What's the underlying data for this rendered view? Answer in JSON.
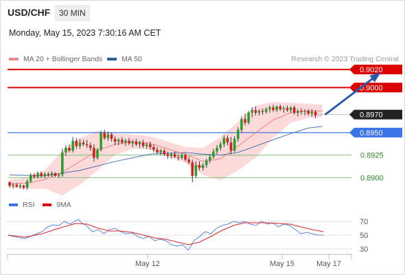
{
  "header": {
    "pair": "USD/CHF",
    "timeframe": "30 MIN",
    "datetime": "Monday, May 15, 2023 7:30:16 AM CET"
  },
  "legend": [
    {
      "label": "MA 20 + Bollinger Bands",
      "color": "#f08a8a"
    },
    {
      "label": "MA 50",
      "color": "#2e5a9c"
    }
  ],
  "credit": "Research © 2023 Trading Central",
  "colors": {
    "up": "#2a9d2a",
    "down": "#d62020",
    "resistance": "#dd0000",
    "support_blue": "#3b73e8",
    "support_green": "#5cb85c",
    "band": "#fcd6d6",
    "ma20": "#f08080",
    "ma50": "#4a6fb5",
    "arrow": "#2a5aa8",
    "current": "#222222"
  },
  "chart_data": [
    {
      "type": "candlestick",
      "y_range": [
        0.8882,
        0.903
      ],
      "x_ticks": [
        "May 12",
        "May 15",
        "May 17"
      ],
      "levels": [
        {
          "value": 0.902,
          "label": "0.9020",
          "kind": "resistance"
        },
        {
          "value": 0.9,
          "label": "0.9000",
          "kind": "resistance"
        },
        {
          "value": 0.897,
          "label": "0.8970",
          "kind": "current"
        },
        {
          "value": 0.895,
          "label": "0.8950",
          "kind": "support_blue"
        },
        {
          "value": 0.8925,
          "label": "0.8925",
          "kind": "support_green"
        },
        {
          "value": 0.89,
          "label": "0.8900",
          "kind": "support_green"
        }
      ],
      "candles": [
        [
          0.8895,
          0.8896,
          0.8889,
          0.8891
        ],
        [
          0.8891,
          0.8894,
          0.8888,
          0.8892
        ],
        [
          0.8892,
          0.8894,
          0.8889,
          0.889
        ],
        [
          0.889,
          0.8893,
          0.8888,
          0.8891
        ],
        [
          0.8891,
          0.8892,
          0.8887,
          0.8889
        ],
        [
          0.8889,
          0.8898,
          0.8887,
          0.8896
        ],
        [
          0.8896,
          0.8905,
          0.8894,
          0.8903
        ],
        [
          0.8903,
          0.8905,
          0.8899,
          0.8901
        ],
        [
          0.8901,
          0.8907,
          0.8899,
          0.8905
        ],
        [
          0.8905,
          0.8907,
          0.89,
          0.8902
        ],
        [
          0.8902,
          0.8906,
          0.89,
          0.8904
        ],
        [
          0.8904,
          0.8906,
          0.8901,
          0.8903
        ],
        [
          0.8903,
          0.8907,
          0.8901,
          0.8905
        ],
        [
          0.8905,
          0.8906,
          0.8901,
          0.8902
        ],
        [
          0.8902,
          0.8905,
          0.89,
          0.8903
        ],
        [
          0.8903,
          0.8932,
          0.8901,
          0.8928
        ],
        [
          0.8928,
          0.8936,
          0.8924,
          0.8933
        ],
        [
          0.8933,
          0.8937,
          0.8928,
          0.893
        ],
        [
          0.893,
          0.8945,
          0.8928,
          0.8941
        ],
        [
          0.8941,
          0.8944,
          0.8932,
          0.8935
        ],
        [
          0.8935,
          0.8943,
          0.8932,
          0.8939
        ],
        [
          0.8939,
          0.8942,
          0.8935,
          0.8937
        ],
        [
          0.8937,
          0.8942,
          0.8933,
          0.8936
        ],
        [
          0.8936,
          0.8939,
          0.893,
          0.8933
        ],
        [
          0.8933,
          0.8937,
          0.8918,
          0.8922
        ],
        [
          0.8922,
          0.8933,
          0.892,
          0.8931
        ],
        [
          0.8931,
          0.8952,
          0.8929,
          0.895
        ],
        [
          0.895,
          0.8953,
          0.8942,
          0.8944
        ],
        [
          0.8944,
          0.8951,
          0.8941,
          0.8948
        ],
        [
          0.8948,
          0.895,
          0.894,
          0.8943
        ],
        [
          0.8943,
          0.8946,
          0.8936,
          0.894
        ],
        [
          0.894,
          0.8944,
          0.8936,
          0.8942
        ],
        [
          0.8942,
          0.8945,
          0.8937,
          0.8939
        ],
        [
          0.8939,
          0.8943,
          0.8935,
          0.8941
        ],
        [
          0.8941,
          0.8944,
          0.8936,
          0.8938
        ],
        [
          0.8938,
          0.8942,
          0.8934,
          0.894
        ],
        [
          0.894,
          0.8943,
          0.8935,
          0.8937
        ],
        [
          0.8937,
          0.8941,
          0.8933,
          0.8939
        ],
        [
          0.8939,
          0.8942,
          0.8933,
          0.8935
        ],
        [
          0.8935,
          0.8939,
          0.8932,
          0.8937
        ],
        [
          0.8937,
          0.894,
          0.8931,
          0.8934
        ],
        [
          0.8934,
          0.8937,
          0.8928,
          0.8931
        ],
        [
          0.8931,
          0.8934,
          0.8926,
          0.8928
        ],
        [
          0.8928,
          0.8932,
          0.8925,
          0.893
        ],
        [
          0.893,
          0.8932,
          0.8924,
          0.8926
        ],
        [
          0.8926,
          0.8929,
          0.8921,
          0.8924
        ],
        [
          0.8924,
          0.8928,
          0.8921,
          0.8926
        ],
        [
          0.8926,
          0.8929,
          0.8922,
          0.8923
        ],
        [
          0.8923,
          0.8926,
          0.8919,
          0.8922
        ],
        [
          0.8922,
          0.8927,
          0.892,
          0.8925
        ],
        [
          0.8925,
          0.8927,
          0.8918,
          0.892
        ],
        [
          0.892,
          0.8923,
          0.8915,
          0.8917
        ],
        [
          0.8917,
          0.892,
          0.8895,
          0.8902
        ],
        [
          0.8902,
          0.8918,
          0.89,
          0.8914
        ],
        [
          0.8914,
          0.8918,
          0.8908,
          0.8911
        ],
        [
          0.8911,
          0.8916,
          0.8908,
          0.8914
        ],
        [
          0.8914,
          0.8921,
          0.8911,
          0.8919
        ],
        [
          0.8919,
          0.8926,
          0.8916,
          0.8923
        ],
        [
          0.8923,
          0.8932,
          0.8921,
          0.8929
        ],
        [
          0.8929,
          0.8936,
          0.8926,
          0.8933
        ],
        [
          0.8933,
          0.894,
          0.893,
          0.8937
        ],
        [
          0.8937,
          0.8947,
          0.8934,
          0.8944
        ],
        [
          0.8944,
          0.8947,
          0.8936,
          0.8939
        ],
        [
          0.8939,
          0.8945,
          0.8926,
          0.893
        ],
        [
          0.893,
          0.8946,
          0.8928,
          0.8943
        ],
        [
          0.8943,
          0.8956,
          0.894,
          0.8953
        ],
        [
          0.8953,
          0.8968,
          0.895,
          0.8965
        ],
        [
          0.8965,
          0.8971,
          0.8958,
          0.8961
        ],
        [
          0.8961,
          0.8974,
          0.8959,
          0.8972
        ],
        [
          0.8972,
          0.8978,
          0.8967,
          0.8975
        ],
        [
          0.8975,
          0.8979,
          0.8969,
          0.8972
        ],
        [
          0.8972,
          0.8976,
          0.8969,
          0.8974
        ],
        [
          0.8974,
          0.8977,
          0.897,
          0.8973
        ],
        [
          0.8973,
          0.8978,
          0.8971,
          0.8976
        ],
        [
          0.8976,
          0.898,
          0.8972,
          0.8978
        ],
        [
          0.8978,
          0.8981,
          0.8973,
          0.8975
        ],
        [
          0.8975,
          0.898,
          0.8973,
          0.8979
        ],
        [
          0.8979,
          0.8981,
          0.8974,
          0.8976
        ],
        [
          0.8976,
          0.8979,
          0.8972,
          0.8977
        ],
        [
          0.8977,
          0.898,
          0.8973,
          0.8975
        ],
        [
          0.8975,
          0.8979,
          0.8972,
          0.8978
        ],
        [
          0.8978,
          0.898,
          0.897,
          0.8972
        ],
        [
          0.8972,
          0.8976,
          0.8968,
          0.8974
        ],
        [
          0.8974,
          0.8977,
          0.897,
          0.8973
        ],
        [
          0.8973,
          0.8976,
          0.8969,
          0.8974
        ],
        [
          0.8974,
          0.8976,
          0.8969,
          0.8971
        ],
        [
          0.8971,
          0.8976,
          0.8968,
          0.8973
        ],
        [
          0.8973,
          0.8975,
          0.8966,
          0.8969
        ]
      ],
      "ma20": [
        [
          0,
          0.8893
        ],
        [
          5,
          0.8894
        ],
        [
          10,
          0.8898
        ],
        [
          15,
          0.8906
        ],
        [
          20,
          0.8918
        ],
        [
          25,
          0.893
        ],
        [
          30,
          0.8937
        ],
        [
          35,
          0.894
        ],
        [
          40,
          0.8938
        ],
        [
          45,
          0.8932
        ],
        [
          50,
          0.8926
        ],
        [
          55,
          0.8918
        ],
        [
          60,
          0.8921
        ],
        [
          65,
          0.8935
        ],
        [
          70,
          0.895
        ],
        [
          75,
          0.8964
        ],
        [
          80,
          0.8972
        ],
        [
          85,
          0.8974
        ],
        [
          89,
          0.8974
        ]
      ],
      "ma50": [
        [
          0,
          0.8903
        ],
        [
          10,
          0.8902
        ],
        [
          20,
          0.8908
        ],
        [
          30,
          0.8918
        ],
        [
          40,
          0.8926
        ],
        [
          50,
          0.8928
        ],
        [
          55,
          0.8926
        ],
        [
          60,
          0.8925
        ],
        [
          65,
          0.8928
        ],
        [
          70,
          0.8935
        ],
        [
          75,
          0.8942
        ],
        [
          80,
          0.8949
        ],
        [
          85,
          0.8955
        ],
        [
          89,
          0.8957
        ]
      ],
      "bollinger_upper": [
        [
          0,
          0.8898
        ],
        [
          5,
          0.89
        ],
        [
          10,
          0.8908
        ],
        [
          15,
          0.893
        ],
        [
          20,
          0.8944
        ],
        [
          25,
          0.8952
        ],
        [
          30,
          0.8949
        ],
        [
          35,
          0.8948
        ],
        [
          40,
          0.8946
        ],
        [
          45,
          0.894
        ],
        [
          50,
          0.8934
        ],
        [
          55,
          0.8933
        ],
        [
          60,
          0.8945
        ],
        [
          65,
          0.8962
        ],
        [
          70,
          0.898
        ],
        [
          75,
          0.8984
        ],
        [
          80,
          0.8983
        ],
        [
          85,
          0.8982
        ],
        [
          89,
          0.8981
        ]
      ],
      "bollinger_lower": [
        [
          0,
          0.8889
        ],
        [
          5,
          0.8887
        ],
        [
          10,
          0.8888
        ],
        [
          15,
          0.888
        ],
        [
          20,
          0.8892
        ],
        [
          25,
          0.8908
        ],
        [
          30,
          0.8925
        ],
        [
          35,
          0.8932
        ],
        [
          40,
          0.8931
        ],
        [
          45,
          0.8924
        ],
        [
          50,
          0.8916
        ],
        [
          55,
          0.8903
        ],
        [
          60,
          0.8897
        ],
        [
          65,
          0.8908
        ],
        [
          70,
          0.8922
        ],
        [
          75,
          0.8944
        ],
        [
          80,
          0.8961
        ],
        [
          85,
          0.8966
        ],
        [
          89,
          0.8967
        ]
      ],
      "forecast_arrow": {
        "from": [
          89,
          0.897
        ],
        "to": [
          105,
          0.9015
        ]
      }
    },
    {
      "type": "line",
      "y_range": [
        22,
        80
      ],
      "y_ticks": [
        70,
        50,
        30
      ],
      "reference_levels": [
        70,
        50,
        30
      ],
      "legend": [
        "RSI",
        "9MA"
      ],
      "rsi": [
        [
          0,
          50
        ],
        [
          3,
          47
        ],
        [
          6,
          45
        ],
        [
          9,
          50
        ],
        [
          12,
          55
        ],
        [
          14,
          62
        ],
        [
          16,
          65
        ],
        [
          18,
          64
        ],
        [
          20,
          70
        ],
        [
          22,
          66
        ],
        [
          24,
          71
        ],
        [
          25,
          73
        ],
        [
          26,
          68
        ],
        [
          28,
          63
        ],
        [
          30,
          55
        ],
        [
          32,
          58
        ],
        [
          34,
          52
        ],
        [
          36,
          58
        ],
        [
          38,
          60
        ],
        [
          40,
          55
        ],
        [
          42,
          52
        ],
        [
          44,
          53
        ],
        [
          46,
          48
        ],
        [
          48,
          45
        ],
        [
          50,
          48
        ],
        [
          52,
          42
        ],
        [
          54,
          44
        ],
        [
          56,
          42
        ],
        [
          58,
          36
        ],
        [
          60,
          34
        ],
        [
          62,
          36
        ],
        [
          64,
          28
        ],
        [
          66,
          42
        ],
        [
          68,
          48
        ],
        [
          70,
          55
        ],
        [
          72,
          52
        ],
        [
          74,
          60
        ],
        [
          76,
          64
        ],
        [
          78,
          66
        ],
        [
          80,
          70
        ],
        [
          82,
          68
        ],
        [
          84,
          70
        ],
        [
          86,
          66
        ],
        [
          88,
          64
        ],
        [
          90,
          70
        ],
        [
          92,
          66
        ],
        [
          94,
          68
        ],
        [
          96,
          62
        ],
        [
          98,
          66
        ],
        [
          100,
          64
        ],
        [
          102,
          58
        ],
        [
          104,
          52
        ],
        [
          106,
          54
        ],
        [
          108,
          52
        ],
        [
          110,
          50
        ],
        [
          112,
          50
        ]
      ],
      "ma9": [
        [
          0,
          50
        ],
        [
          6,
          47
        ],
        [
          12,
          52
        ],
        [
          18,
          60
        ],
        [
          24,
          67
        ],
        [
          28,
          66
        ],
        [
          32,
          60
        ],
        [
          36,
          56
        ],
        [
          40,
          56
        ],
        [
          44,
          54
        ],
        [
          48,
          50
        ],
        [
          52,
          46
        ],
        [
          56,
          44
        ],
        [
          60,
          40
        ],
        [
          64,
          36
        ],
        [
          68,
          40
        ],
        [
          72,
          48
        ],
        [
          76,
          57
        ],
        [
          80,
          64
        ],
        [
          84,
          68
        ],
        [
          88,
          68
        ],
        [
          92,
          68
        ],
        [
          96,
          67
        ],
        [
          100,
          66
        ],
        [
          104,
          62
        ],
        [
          108,
          58
        ],
        [
          112,
          55
        ]
      ]
    }
  ]
}
